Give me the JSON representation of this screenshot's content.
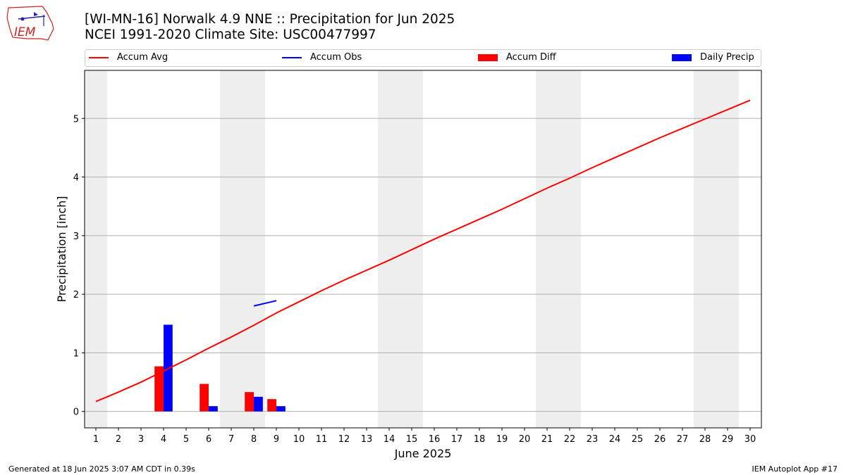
{
  "header": {
    "logo_text": "IEM",
    "title_line1": "[WI-MN-16] Norwalk 4.9 NNE :: Precipitation for Jun 2025",
    "title_line2": "NCEI 1991-2020 Climate Site: USC00477997"
  },
  "legend": {
    "items": [
      {
        "label": "Accum Avg",
        "kind": "line",
        "color": "#ff0000"
      },
      {
        "label": "Accum Obs",
        "kind": "line",
        "color": "#0000ff"
      },
      {
        "label": "Accum Diff",
        "kind": "box",
        "color": "#ff0000"
      },
      {
        "label": "Daily Precip",
        "kind": "box",
        "color": "#0000ff"
      }
    ]
  },
  "footer": {
    "left": "Generated at 18 Jun 2025 3:07 AM CDT in 0.39s",
    "right": "IEM Autoplot App #17"
  },
  "chart_data": {
    "type": "bar",
    "xlabel": "June 2025",
    "ylabel": "Precipitation [inch]",
    "xlim": [
      0.5,
      30.5
    ],
    "ylim": [
      -0.28,
      5.82
    ],
    "x_ticks": [
      1,
      2,
      3,
      4,
      5,
      6,
      7,
      8,
      9,
      10,
      11,
      12,
      13,
      14,
      15,
      16,
      17,
      18,
      19,
      20,
      21,
      22,
      23,
      24,
      25,
      26,
      27,
      28,
      29,
      30
    ],
    "y_ticks": [
      0,
      1,
      2,
      3,
      4,
      5
    ],
    "grid": "horizontal",
    "weekend_shading": [
      [
        0.5,
        1.5
      ],
      [
        6.5,
        8.5
      ],
      [
        13.5,
        15.5
      ],
      [
        20.5,
        22.5
      ],
      [
        27.5,
        29.5
      ]
    ],
    "colors": {
      "avg": "#ff0000",
      "obs": "#0000ff",
      "diff": "#ff0000",
      "precip": "#0000ff",
      "shade": "#eeeeee"
    },
    "series": [
      {
        "name": "Accum Avg",
        "kind": "line",
        "x": [
          1,
          2,
          3,
          4,
          5,
          6,
          7,
          8,
          9,
          10,
          11,
          12,
          13,
          14,
          15,
          16,
          17,
          18,
          19,
          20,
          21,
          22,
          23,
          24,
          25,
          26,
          27,
          28,
          29,
          30
        ],
        "values": [
          0.17,
          0.33,
          0.5,
          0.69,
          0.88,
          1.08,
          1.27,
          1.47,
          1.68,
          1.87,
          2.06,
          2.24,
          2.41,
          2.58,
          2.76,
          2.94,
          3.11,
          3.28,
          3.45,
          3.63,
          3.81,
          3.98,
          4.16,
          4.33,
          4.5,
          4.67,
          4.83,
          4.99,
          5.15,
          5.31
        ]
      },
      {
        "name": "Accum Obs",
        "kind": "line",
        "x": [
          8,
          9
        ],
        "values": [
          1.8,
          1.89
        ]
      },
      {
        "name": "Accum Diff",
        "kind": "bar",
        "offset": -0.2,
        "x": [
          4,
          6,
          8,
          9
        ],
        "values": [
          0.77,
          0.47,
          0.33,
          0.21
        ]
      },
      {
        "name": "Daily Precip",
        "kind": "bar",
        "offset": 0.2,
        "x": [
          4,
          6,
          8,
          9
        ],
        "values": [
          1.48,
          0.09,
          0.25,
          0.09
        ]
      }
    ]
  }
}
